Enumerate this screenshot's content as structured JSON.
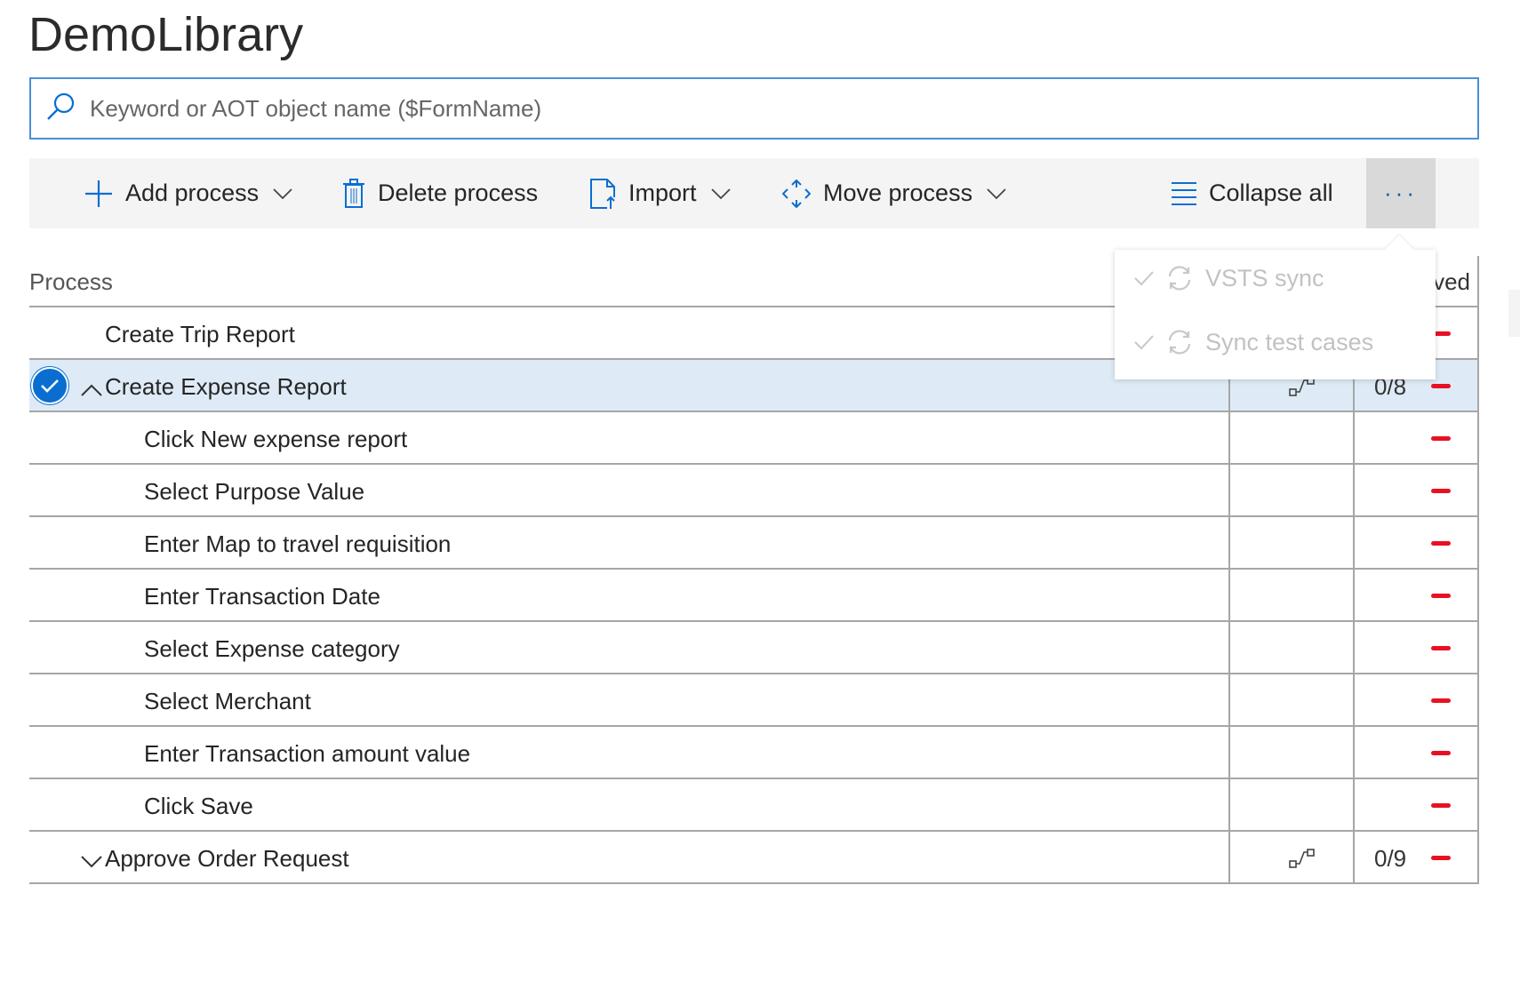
{
  "title": "DemoLibrary",
  "search": {
    "placeholder": "Keyword or AOT object name ($FormName)",
    "icon": "search-icon"
  },
  "toolbar": {
    "add_process": "Add process",
    "delete_process": "Delete process",
    "import": "Import",
    "move_process": "Move process",
    "collapse_all": "Collapse all",
    "more": "···"
  },
  "menu": {
    "items": [
      {
        "label": "VSTS sync",
        "checked": true,
        "enabled": false,
        "icon": "sync-icon"
      },
      {
        "label": "Sync test cases",
        "checked": true,
        "enabled": false,
        "icon": "sync-icon"
      }
    ]
  },
  "table": {
    "headers": {
      "process": "Process",
      "col3_partial": "ved"
    },
    "rows": [
      {
        "name": "Create Trip Report",
        "level": 0,
        "count": "",
        "link": false
      },
      {
        "name": "Create Expense Report",
        "level": 0,
        "expanded": true,
        "selected": true,
        "count": "0/8",
        "link": true
      },
      {
        "name": "Click New expense report",
        "level": 1
      },
      {
        "name": "Select Purpose Value",
        "level": 1
      },
      {
        "name": "Enter Map to travel requisition",
        "level": 1
      },
      {
        "name": "Enter Transaction Date",
        "level": 1
      },
      {
        "name": "Select Expense category",
        "level": 1
      },
      {
        "name": "Select Merchant",
        "level": 1
      },
      {
        "name": "Enter Transaction amount value",
        "level": 1
      },
      {
        "name": "Click Save",
        "level": 1
      },
      {
        "name": "Approve Order Request",
        "level": 0,
        "expanded": false,
        "count": "0/9",
        "link": true
      }
    ]
  },
  "colors": {
    "accent": "#0a6ed1",
    "selected_row": "#deebf7",
    "status_dash": "#e81123",
    "toolbar_bg": "#f4f4f4"
  }
}
